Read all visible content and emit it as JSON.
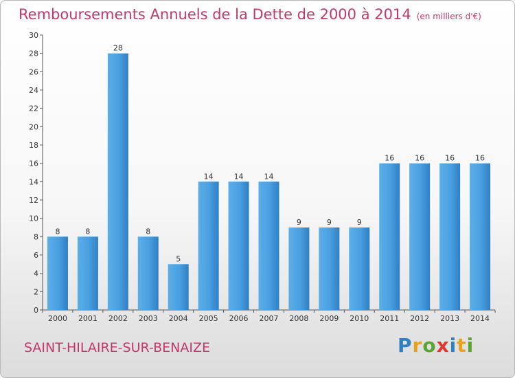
{
  "title": "Remboursements Annuels de la Dette de 2000 à 2014",
  "unit": "(en milliers d'€)",
  "commune": "SAINT-HILAIRE-SUR-BENAIZE",
  "logo": {
    "letters": [
      "P",
      "r",
      "o",
      "x",
      "i",
      "t",
      "i"
    ],
    "colors": [
      "#2f7fc1",
      "#e8a21b",
      "#5aa532",
      "#e0362c",
      "#2f7fc1",
      "#e8a21b",
      "#5aa532"
    ]
  },
  "chart_data": {
    "type": "bar",
    "categories": [
      "2000",
      "2001",
      "2002",
      "2003",
      "2004",
      "2005",
      "2006",
      "2007",
      "2008",
      "2009",
      "2010",
      "2011",
      "2012",
      "2013",
      "2014"
    ],
    "values": [
      8,
      8,
      28,
      8,
      5,
      14,
      14,
      14,
      9,
      9,
      9,
      16,
      16,
      16,
      16
    ],
    "ylim": [
      0,
      30
    ],
    "yticks": [
      0,
      2,
      4,
      6,
      8,
      10,
      12,
      14,
      16,
      18,
      20,
      22,
      24,
      26,
      28,
      30
    ],
    "grid": false,
    "bar_color": "#4a9fe0"
  }
}
